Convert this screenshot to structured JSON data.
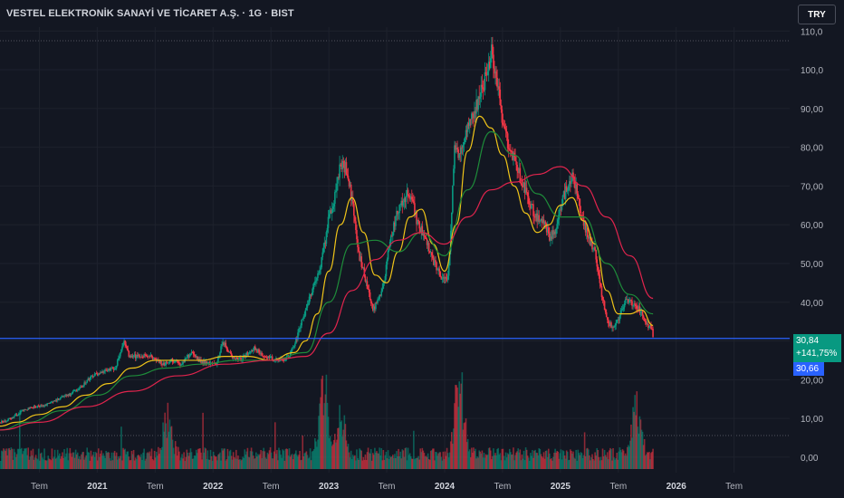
{
  "header": {
    "title": "VESTEL ELEKTRONİK SANAYİ VE TİCARET A.Ş. · 1G · BIST",
    "currency": "TRY"
  },
  "badges": {
    "price": "30,84",
    "change": "+141,75%",
    "level": "30,66"
  },
  "colors": {
    "background": "#131722",
    "up": "#089981",
    "down": "#f23645",
    "ma_short": "#f0c419",
    "ma_mid": "#1e8c3a",
    "ma_long": "#e0244d",
    "level_line": "#2962ff"
  },
  "chart_data": {
    "type": "line",
    "title": "VESTEL ELEKTRONİK SANAYİ VE TİCARET A.Ş. · 1G · BIST",
    "y_ticks": [
      "110,0",
      "100,0",
      "90,00",
      "80,00",
      "70,00",
      "60,00",
      "50,00",
      "40,00",
      "30,00",
      "20,00",
      "10,00",
      "0,00"
    ],
    "y_tick_values": [
      110,
      100,
      90,
      80,
      70,
      60,
      50,
      40,
      30,
      20,
      10,
      0
    ],
    "ylim": [
      -4,
      111
    ],
    "x_ticks": [
      {
        "label": "Tem",
        "date": 2020.5,
        "year": false
      },
      {
        "label": "2021",
        "date": 2021.0,
        "year": true
      },
      {
        "label": "Tem",
        "date": 2021.5,
        "year": false
      },
      {
        "label": "2022",
        "date": 2022.0,
        "year": true
      },
      {
        "label": "Tem",
        "date": 2022.5,
        "year": false
      },
      {
        "label": "2023",
        "date": 2023.0,
        "year": true
      },
      {
        "label": "Tem",
        "date": 2023.5,
        "year": false
      },
      {
        "label": "2024",
        "date": 2024.0,
        "year": true
      },
      {
        "label": "Tem",
        "date": 2024.5,
        "year": false
      },
      {
        "label": "2025",
        "date": 2025.0,
        "year": true
      },
      {
        "label": "Tem",
        "date": 2025.5,
        "year": false
      },
      {
        "label": "2026",
        "date": 2026.0,
        "year": true
      },
      {
        "label": "Tem",
        "date": 2026.5,
        "year": false
      }
    ],
    "xlim": [
      2020.16,
      2026.98
    ],
    "horizontal_line": 30.66,
    "series": [
      {
        "kind": "price",
        "x": [
          2020.16,
          2020.25,
          2020.35,
          2020.45,
          2020.55,
          2020.65,
          2020.75,
          2020.85,
          2020.95,
          2021.05,
          2021.15,
          2021.22,
          2021.27,
          2021.35,
          2021.45,
          2021.55,
          2021.65,
          2021.72,
          2021.8,
          2021.88,
          2021.96,
          2022.02,
          2022.08,
          2022.15,
          2022.22,
          2022.3,
          2022.35,
          2022.45,
          2022.55,
          2022.62,
          2022.7,
          2022.78,
          2022.84,
          2022.9,
          2022.96,
          2023.0,
          2023.05,
          2023.1,
          2023.15,
          2023.2,
          2023.25,
          2023.3,
          2023.38,
          2023.45,
          2023.52,
          2023.58,
          2023.64,
          2023.7,
          2023.76,
          2023.82,
          2023.88,
          2023.95,
          2024.02,
          2024.05,
          2024.08,
          2024.12,
          2024.17,
          2024.22,
          2024.27,
          2024.32,
          2024.35,
          2024.4,
          2024.45,
          2024.5,
          2024.55,
          2024.6,
          2024.65,
          2024.7,
          2024.75,
          2024.8,
          2024.85,
          2024.9,
          2024.95,
          2025.0,
          2025.05,
          2025.1,
          2025.15,
          2025.2,
          2025.25,
          2025.3,
          2025.35,
          2025.4,
          2025.45,
          2025.5,
          2025.55,
          2025.6,
          2025.65,
          2025.7,
          2025.75,
          2025.78,
          2025.8
        ],
        "values": [
          9,
          10,
          12,
          13,
          13.5,
          15,
          16,
          18,
          21,
          22,
          23,
          30,
          26,
          26,
          26,
          24,
          25,
          24,
          27,
          25,
          24,
          24,
          30,
          26,
          25,
          27,
          28,
          26,
          25,
          25,
          29,
          37,
          42,
          47,
          55,
          63,
          68,
          76,
          74,
          65,
          53,
          47,
          38,
          42,
          55,
          63,
          67,
          68,
          60,
          57,
          52,
          47,
          45,
          60,
          80,
          78,
          82,
          88,
          91,
          96,
          98,
          105,
          97,
          86,
          80,
          76,
          72,
          68,
          64,
          62,
          60,
          57,
          58,
          65,
          70,
          73,
          66,
          60,
          56,
          52,
          42,
          35,
          33,
          36,
          40,
          40,
          39,
          37,
          34,
          33,
          31
        ]
      },
      {
        "kind": "ma_short",
        "x": [
          2020.16,
          2020.3,
          2020.5,
          2020.7,
          2020.9,
          2021.1,
          2021.3,
          2021.5,
          2021.7,
          2021.9,
          2022.1,
          2022.3,
          2022.5,
          2022.7,
          2022.8,
          2022.9,
          2023.0,
          2023.1,
          2023.2,
          2023.3,
          2023.4,
          2023.5,
          2023.6,
          2023.7,
          2023.8,
          2023.9,
          2024.0,
          2024.1,
          2024.2,
          2024.3,
          2024.4,
          2024.5,
          2024.6,
          2024.7,
          2024.8,
          2024.9,
          2025.0,
          2025.1,
          2025.2,
          2025.3,
          2025.4,
          2025.5,
          2025.6,
          2025.7,
          2025.8
        ],
        "values": [
          8,
          9,
          11,
          13,
          16,
          19,
          23,
          25,
          25,
          25,
          26,
          26,
          25,
          27,
          30,
          37,
          48,
          60,
          67,
          58,
          47,
          45,
          53,
          62,
          64,
          55,
          48,
          60,
          79,
          88,
          85,
          78,
          70,
          63,
          58,
          60,
          65,
          67,
          61,
          55,
          43,
          37,
          37,
          38,
          34
        ]
      },
      {
        "kind": "ma_mid",
        "x": [
          2020.16,
          2020.4,
          2020.7,
          2021.0,
          2021.3,
          2021.6,
          2021.9,
          2022.2,
          2022.5,
          2022.8,
          2023.0,
          2023.2,
          2023.4,
          2023.6,
          2023.8,
          2024.0,
          2024.2,
          2024.4,
          2024.6,
          2024.8,
          2025.0,
          2025.2,
          2025.4,
          2025.6,
          2025.8
        ],
        "values": [
          7,
          9,
          12,
          16,
          21,
          23,
          24,
          25,
          25,
          27,
          40,
          55,
          56,
          53,
          58,
          52,
          69,
          84,
          78,
          68,
          62,
          62,
          50,
          42,
          37
        ]
      },
      {
        "kind": "ma_long",
        "x": [
          2020.16,
          2020.5,
          2020.9,
          2021.3,
          2021.7,
          2022.1,
          2022.5,
          2022.8,
          2023.0,
          2023.2,
          2023.4,
          2023.6,
          2023.8,
          2024.0,
          2024.2,
          2024.4,
          2024.6,
          2024.8,
          2025.0,
          2025.2,
          2025.4,
          2025.6,
          2025.8
        ],
        "values": [
          7,
          9,
          13,
          17,
          21,
          24,
          25,
          26,
          32,
          43,
          51,
          56,
          58,
          55,
          62,
          69,
          71,
          73,
          75,
          70,
          62,
          52,
          41
        ]
      }
    ],
    "volume": {
      "x_range": [
        2020.16,
        2025.8
      ],
      "ylim": [
        0,
        80
      ],
      "peaks": [
        {
          "x": 2022.95,
          "v": 60
        },
        {
          "x": 2024.12,
          "v": 64
        },
        {
          "x": 2021.6,
          "v": 35
        },
        {
          "x": 2025.65,
          "v": 40
        },
        {
          "x": 2023.1,
          "v": 30
        }
      ]
    }
  }
}
